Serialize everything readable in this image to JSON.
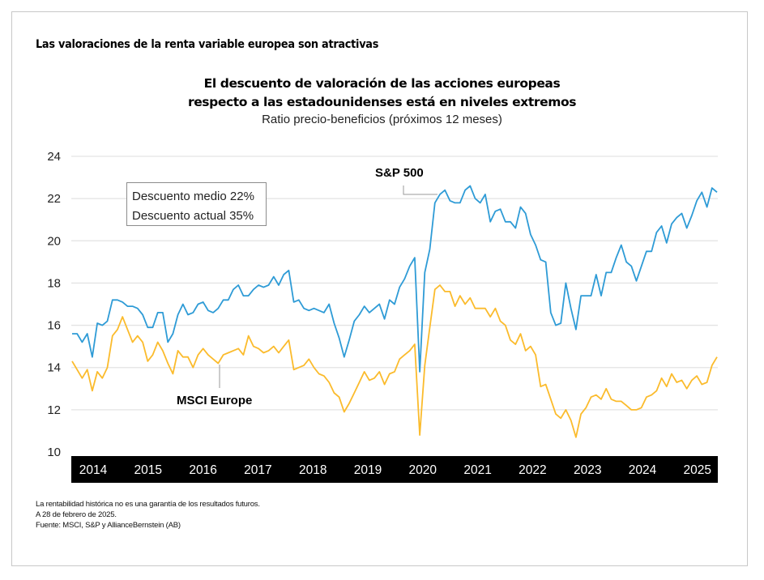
{
  "header": {
    "headline": "Las valoraciones de la renta variable europea son atractivas"
  },
  "legend_box": {
    "line1": "Descuento medio 22%",
    "line2": "Descuento actual 35%"
  },
  "footnotes": [
    "La rentabilidad histórica no es una garantía de los resultados futuros.",
    "A 28 de febrero de 2025.",
    "Fuente: MSCI, S&P y AllianceBernstein (AB)"
  ],
  "colors": {
    "sp500": "#2e9bd6",
    "msci_europe": "#fbbb2c",
    "axis_bar": "#000000",
    "grid": "#e3e3e3"
  },
  "chart_data": {
    "type": "line",
    "title": "El descuento de valoración de las acciones europeas respecto a las estadounidenses está en niveles extremos",
    "title_lines": [
      "El descuento de valoración de las acciones europeas",
      "respecto a las estadounidenses está en niveles extremos"
    ],
    "subtitle": "Ratio precio-beneficios (próximos 12 meses)",
    "xlabel": "",
    "ylabel": "",
    "ylim": [
      10,
      24
    ],
    "yticks": [
      10,
      12,
      14,
      16,
      18,
      20,
      22,
      24
    ],
    "xticks": [
      "2014",
      "2015",
      "2016",
      "2017",
      "2018",
      "2019",
      "2020",
      "2021",
      "2022",
      "2023",
      "2024",
      "2025"
    ],
    "grid": true,
    "x_frequency": "monthly",
    "series": [
      {
        "name": "S&P 500",
        "values": [
          15.6,
          15.6,
          15.2,
          15.6,
          14.5,
          16.1,
          16.0,
          16.2,
          17.2,
          17.2,
          17.1,
          16.9,
          16.9,
          16.8,
          16.5,
          15.9,
          15.9,
          16.6,
          16.6,
          15.2,
          15.6,
          16.5,
          17.0,
          16.5,
          16.6,
          17.0,
          17.1,
          16.7,
          16.6,
          16.8,
          17.2,
          17.2,
          17.7,
          17.9,
          17.4,
          17.4,
          17.7,
          17.9,
          17.8,
          17.9,
          18.3,
          17.9,
          18.4,
          18.6,
          17.1,
          17.2,
          16.8,
          16.7,
          16.8,
          16.7,
          16.6,
          17.0,
          16.1,
          15.4,
          14.5,
          15.3,
          16.2,
          16.5,
          16.9,
          16.6,
          16.8,
          17.0,
          16.3,
          17.2,
          17.0,
          17.8,
          18.2,
          18.8,
          19.2,
          13.8,
          18.5,
          19.6,
          21.8,
          22.2,
          22.4,
          21.9,
          21.8,
          21.8,
          22.4,
          22.6,
          22.0,
          21.8,
          22.2,
          20.9,
          21.4,
          21.5,
          20.9,
          20.9,
          20.6,
          21.6,
          21.3,
          20.3,
          19.8,
          19.1,
          19.0,
          16.6,
          16.0,
          16.1,
          18.0,
          16.8,
          15.8,
          17.4,
          17.4,
          17.4,
          18.4,
          17.4,
          18.5,
          18.5,
          19.2,
          19.8,
          19.0,
          18.8,
          18.1,
          18.8,
          19.5,
          19.5,
          20.4,
          20.7,
          19.9,
          20.8,
          21.1,
          21.3,
          20.6,
          21.2,
          21.9,
          22.3,
          21.6,
          22.5,
          22.3
        ]
      },
      {
        "name": "MSCI Europe",
        "values": [
          14.3,
          13.9,
          13.5,
          13.9,
          12.9,
          13.8,
          13.5,
          14.0,
          15.5,
          15.8,
          16.4,
          15.8,
          15.2,
          15.5,
          15.2,
          14.3,
          14.6,
          15.2,
          14.8,
          14.2,
          13.7,
          14.8,
          14.5,
          14.5,
          14.0,
          14.6,
          14.9,
          14.6,
          14.4,
          14.2,
          14.6,
          14.7,
          14.8,
          14.9,
          14.6,
          15.5,
          15.0,
          14.9,
          14.7,
          14.8,
          15.0,
          14.7,
          15.0,
          15.3,
          13.9,
          14.0,
          14.1,
          14.4,
          14.0,
          13.7,
          13.6,
          13.3,
          12.8,
          12.6,
          11.9,
          12.3,
          12.8,
          13.3,
          13.8,
          13.4,
          13.5,
          13.8,
          13.2,
          13.7,
          13.8,
          14.4,
          14.6,
          14.8,
          15.1,
          10.8,
          14.1,
          15.9,
          17.7,
          17.9,
          17.6,
          17.6,
          16.9,
          17.4,
          17.0,
          17.3,
          16.8,
          16.8,
          16.8,
          16.4,
          16.8,
          16.2,
          16.0,
          15.3,
          15.1,
          15.6,
          14.8,
          15.0,
          14.6,
          13.1,
          13.2,
          12.5,
          11.8,
          11.6,
          12.0,
          11.5,
          10.7,
          11.8,
          12.1,
          12.6,
          12.7,
          12.5,
          13.0,
          12.5,
          12.4,
          12.4,
          12.2,
          12.0,
          12.0,
          12.1,
          12.6,
          12.7,
          12.9,
          13.5,
          13.1,
          13.7,
          13.3,
          13.4,
          13.0,
          13.4,
          13.6,
          13.2,
          13.3,
          14.1,
          14.5
        ]
      }
    ],
    "annotations": [
      {
        "text": "S&P 500",
        "series": "S&P 500"
      },
      {
        "text": "MSCI Europe",
        "series": "MSCI Europe"
      }
    ]
  }
}
